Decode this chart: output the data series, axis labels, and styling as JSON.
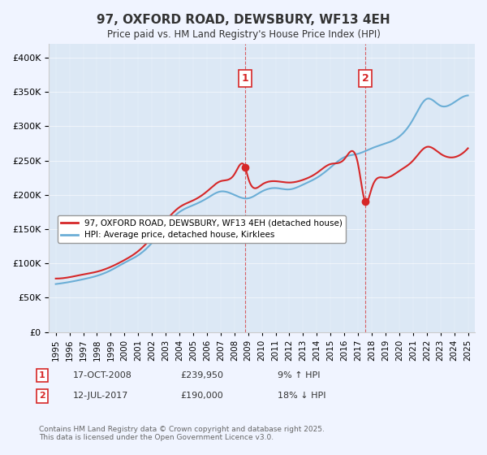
{
  "title": "97, OXFORD ROAD, DEWSBURY, WF13 4EH",
  "subtitle": "Price paid vs. HM Land Registry's House Price Index (HPI)",
  "legend_line1": "97, OXFORD ROAD, DEWSBURY, WF13 4EH (detached house)",
  "legend_line2": "HPI: Average price, detached house, Kirklees",
  "footer": "Contains HM Land Registry data © Crown copyright and database right 2025.\nThis data is licensed under the Open Government Licence v3.0.",
  "annotation1": {
    "label": "1",
    "date": "17-OCT-2008",
    "price": "£239,950",
    "change": "9% ↑ HPI"
  },
  "annotation2": {
    "label": "2",
    "date": "12-JUL-2017",
    "price": "£190,000",
    "change": "18% ↓ HPI"
  },
  "sale1_x": 2008.79,
  "sale1_y": 239950,
  "sale2_x": 2017.53,
  "sale2_y": 190000,
  "hpi_color": "#6baed6",
  "price_color": "#d62728",
  "annotation_color": "#d62728",
  "vline_color": "#d62728",
  "background_color": "#f0f4ff",
  "plot_bg": "#dce8f5",
  "ylim": [
    0,
    420000
  ],
  "xlim_start": 1994.5,
  "xlim_end": 2025.5
}
